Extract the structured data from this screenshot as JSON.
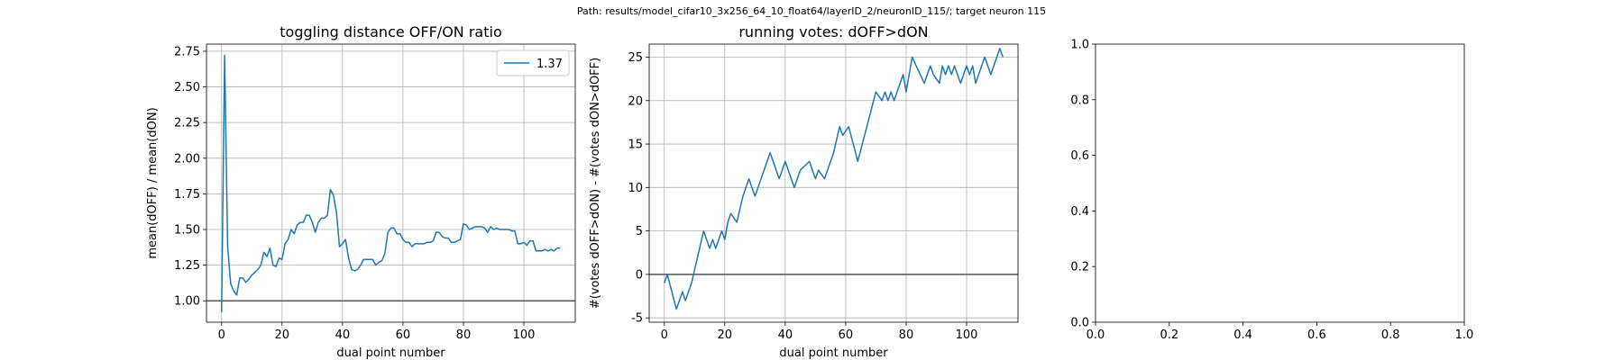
{
  "figure": {
    "suptitle": "Path: results/model_cifar10_3x256_64_10_float64/layerID_2/neuronID_115/; target neuron 115"
  },
  "chart_data": [
    {
      "type": "line",
      "title": "toggling distance OFF/ON ratio",
      "xlabel": "dual point number",
      "ylabel": "mean(dOFF) / mean(dON)",
      "xlim": [
        -5,
        117
      ],
      "ylim": [
        0.85,
        2.8
      ],
      "xticks": [
        0,
        20,
        40,
        60,
        80,
        100
      ],
      "yticks": [
        1.0,
        1.25,
        1.5,
        1.75,
        2.0,
        2.25,
        2.5,
        2.75
      ],
      "ytick_format": 2,
      "grid": true,
      "legend": {
        "position": "top-right",
        "entries": [
          "1.37"
        ]
      },
      "hline": 1.0,
      "series": [
        {
          "name": "1.37",
          "color": "#1f77b4",
          "x": [
            0,
            1,
            2,
            3,
            4,
            5,
            6,
            7,
            8,
            9,
            10,
            11,
            12,
            13,
            14,
            15,
            16,
            17,
            18,
            19,
            20,
            21,
            22,
            23,
            24,
            25,
            26,
            27,
            28,
            29,
            30,
            31,
            32,
            33,
            34,
            35,
            36,
            37,
            38,
            39,
            40,
            41,
            42,
            43,
            44,
            45,
            46,
            47,
            48,
            49,
            50,
            51,
            52,
            53,
            54,
            55,
            56,
            57,
            58,
            59,
            60,
            61,
            62,
            63,
            64,
            65,
            66,
            67,
            68,
            69,
            70,
            71,
            72,
            73,
            74,
            75,
            76,
            77,
            78,
            79,
            80,
            81,
            82,
            83,
            84,
            85,
            86,
            87,
            88,
            89,
            90,
            91,
            92,
            93,
            94,
            95,
            96,
            97,
            98,
            99,
            100,
            101,
            102,
            103,
            104,
            105,
            106,
            107,
            108,
            109,
            110,
            111,
            112
          ],
          "y": [
            0.92,
            2.72,
            1.38,
            1.12,
            1.07,
            1.04,
            1.16,
            1.16,
            1.13,
            1.15,
            1.18,
            1.2,
            1.22,
            1.25,
            1.34,
            1.31,
            1.37,
            1.25,
            1.24,
            1.3,
            1.29,
            1.4,
            1.43,
            1.5,
            1.47,
            1.53,
            1.55,
            1.55,
            1.6,
            1.6,
            1.55,
            1.48,
            1.55,
            1.58,
            1.58,
            1.6,
            1.78,
            1.74,
            1.62,
            1.38,
            1.4,
            1.43,
            1.3,
            1.22,
            1.21,
            1.22,
            1.25,
            1.29,
            1.29,
            1.29,
            1.29,
            1.25,
            1.27,
            1.28,
            1.33,
            1.48,
            1.51,
            1.51,
            1.47,
            1.47,
            1.43,
            1.41,
            1.41,
            1.38,
            1.4,
            1.4,
            1.4,
            1.4,
            1.41,
            1.41,
            1.42,
            1.48,
            1.48,
            1.45,
            1.44,
            1.44,
            1.41,
            1.41,
            1.42,
            1.43,
            1.54,
            1.53,
            1.5,
            1.51,
            1.52,
            1.52,
            1.52,
            1.51,
            1.48,
            1.52,
            1.5,
            1.51,
            1.5,
            1.5,
            1.5,
            1.5,
            1.49,
            1.49,
            1.4,
            1.4,
            1.41,
            1.39,
            1.42,
            1.42,
            1.35,
            1.35,
            1.35,
            1.36,
            1.35,
            1.36,
            1.35,
            1.37,
            1.37
          ]
        }
      ]
    },
    {
      "type": "line",
      "title": "running votes: dOFF>dON",
      "xlabel": "dual point number",
      "ylabel": "#(votes dOFF>dON) - #(votes dON>dOFF)",
      "xlim": [
        -5,
        117
      ],
      "ylim": [
        -5.5,
        26.5
      ],
      "xticks": [
        0,
        20,
        40,
        60,
        80,
        100
      ],
      "yticks": [
        -5,
        0,
        5,
        10,
        15,
        20,
        25
      ],
      "ytick_format": 0,
      "grid": true,
      "hline": 0,
      "series": [
        {
          "color": "#1f77b4",
          "x": [
            0,
            1,
            4,
            6,
            7,
            9,
            13,
            14,
            15,
            16,
            17,
            19,
            20,
            21,
            22,
            24,
            26,
            28,
            29,
            30,
            31,
            32,
            35,
            38,
            39,
            40,
            41,
            42,
            43,
            45,
            48,
            49,
            50,
            51,
            53,
            56,
            58,
            59,
            61,
            64,
            67,
            70,
            72,
            73,
            74,
            75,
            76,
            77,
            78,
            79,
            80,
            82,
            86,
            88,
            89,
            91,
            92,
            93,
            94,
            95,
            96,
            98,
            100,
            101,
            102,
            103,
            104,
            106,
            108,
            110,
            111,
            112
          ],
          "y": [
            -1,
            0,
            -4,
            -2,
            -3,
            -1,
            5,
            4,
            3,
            4,
            3,
            5,
            4,
            6,
            7,
            6,
            9,
            11,
            10,
            9,
            10,
            11,
            14,
            11,
            12,
            13,
            12,
            11,
            10,
            12,
            13,
            12,
            11,
            12,
            11,
            14,
            17,
            16,
            17,
            13,
            17,
            21,
            20,
            21,
            20,
            21,
            20,
            21,
            22,
            23,
            21,
            25,
            22,
            24,
            23,
            22,
            24,
            23,
            24,
            23,
            24,
            22,
            24,
            23,
            24,
            22,
            23,
            25,
            23,
            25,
            26,
            25
          ]
        }
      ]
    },
    {
      "type": "line",
      "title": "",
      "xlabel": "",
      "ylabel": "",
      "xlim": [
        0,
        1
      ],
      "ylim": [
        0,
        1
      ],
      "xticks": [
        0.0,
        0.2,
        0.4,
        0.6,
        0.8,
        1.0
      ],
      "yticks": [
        0.0,
        0.2,
        0.4,
        0.6,
        0.8,
        1.0
      ],
      "ytick_format": 1,
      "xtick_format": 1,
      "grid": false,
      "series": []
    }
  ]
}
